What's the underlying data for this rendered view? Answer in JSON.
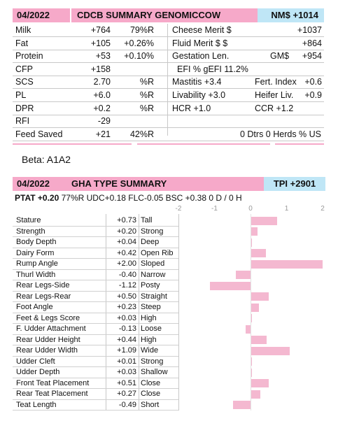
{
  "cdcb": {
    "date": "04/2022",
    "title": "CDCB SUMMARY GENOMICCOW",
    "nms": "NM$ +1014",
    "rows": [
      {
        "c1": "Milk",
        "c2": "+764",
        "c3": "79%R",
        "c4": "Cheese Merit $",
        "c5": "",
        "c6": "+1037"
      },
      {
        "c1": "Fat",
        "c2": "+105",
        "c3": "+0.26%",
        "c4": "Fluid Merit $ $",
        "c5": "",
        "c6": "+864"
      },
      {
        "c1": "Protein",
        "c2": "+53",
        "c3": "+0.10%",
        "c4": "Gestation Len.",
        "c5": "GM$",
        "c6": "+954"
      },
      {
        "c1": "CFP",
        "c2": "+158",
        "c3": "",
        "c4": "EFI  %    gEFI  11.2%",
        "c5": "",
        "c6": ""
      },
      {
        "c1": "SCS",
        "c2": "2.70",
        "c3": "%R",
        "c4": "Mastitis  +3.4",
        "c5": "Fert. Index",
        "c6": "+0.6"
      },
      {
        "c1": "PL",
        "c2": "+6.0",
        "c3": "%R",
        "c4": "Livability  +3.0",
        "c5": "Heifer Liv.",
        "c6": "+0.9"
      },
      {
        "c1": "DPR",
        "c2": "+0.2",
        "c3": "%R",
        "c4": "HCR  +1.0",
        "c5": "CCR  +1.2",
        "c6": ""
      },
      {
        "c1": "RFI",
        "c2": "-29",
        "c3": "",
        "c4": "",
        "c5": "",
        "c6": ""
      },
      {
        "c1": "Feed Saved",
        "c2": "+21",
        "c3": "42%R",
        "c4": "",
        "c5": "0 Dtrs  0 Herds  % US",
        "c6": ""
      }
    ]
  },
  "beta": "Beta: A1A2",
  "gha": {
    "date": "04/2022",
    "title": "GHA TYPE SUMMARY",
    "tpi": "TPI +2901",
    "subline_ptat": "PTAT +0.20",
    "subline_rest": "77%R  UDC+0.18  FLC-0.05  BSC +0.38  0 D / 0 H",
    "ticks": [
      "-2",
      "-1",
      "0",
      "1",
      "2"
    ],
    "scale_min": -2,
    "scale_max": 2,
    "traits": [
      {
        "name": "Stature",
        "value": "+0.73",
        "desc": "Tall",
        "v": 0.73
      },
      {
        "name": "Strength",
        "value": "+0.20",
        "desc": "Strong",
        "v": 0.2
      },
      {
        "name": "Body Depth",
        "value": "+0.04",
        "desc": "Deep",
        "v": 0.04
      },
      {
        "name": "Dairy Form",
        "value": "+0.42",
        "desc": "Open Rib",
        "v": 0.42
      },
      {
        "name": "Rump Angle",
        "value": "+2.00",
        "desc": "Sloped",
        "v": 2.0
      },
      {
        "name": "Thurl Width",
        "value": "-0.40",
        "desc": "Narrow",
        "v": -0.4
      },
      {
        "name": "Rear Legs-Side",
        "value": "-1.12",
        "desc": "Posty",
        "v": -1.12
      },
      {
        "name": "Rear Legs-Rear",
        "value": "+0.50",
        "desc": "Straight",
        "v": 0.5
      },
      {
        "name": "Foot Angle",
        "value": "+0.23",
        "desc": "Steep",
        "v": 0.23
      },
      {
        "name": "Feet & Legs Score",
        "value": "+0.03",
        "desc": "High",
        "v": 0.03
      },
      {
        "name": "F. Udder Attachment",
        "value": "-0.13",
        "desc": "Loose",
        "v": -0.13
      },
      {
        "name": "Rear Udder Height",
        "value": "+0.44",
        "desc": "High",
        "v": 0.44
      },
      {
        "name": "Rear Udder Width",
        "value": "+1.09",
        "desc": "Wide",
        "v": 1.09
      },
      {
        "name": "Udder Cleft",
        "value": "+0.01",
        "desc": "Strong",
        "v": 0.01
      },
      {
        "name": "Udder Depth",
        "value": "+0.03",
        "desc": "Shallow",
        "v": 0.03
      },
      {
        "name": "Front Teat Placement",
        "value": "+0.51",
        "desc": "Close",
        "v": 0.51
      },
      {
        "name": "Rear Teat Placement",
        "value": "+0.27",
        "desc": "Close",
        "v": 0.27
      },
      {
        "name": "Teat Length",
        "value": "-0.49",
        "desc": "Short",
        "v": -0.49
      }
    ]
  },
  "colors": {
    "pink": "#f6a9c9",
    "blue": "#bfe6f6",
    "bar": "#f4b8d0"
  }
}
